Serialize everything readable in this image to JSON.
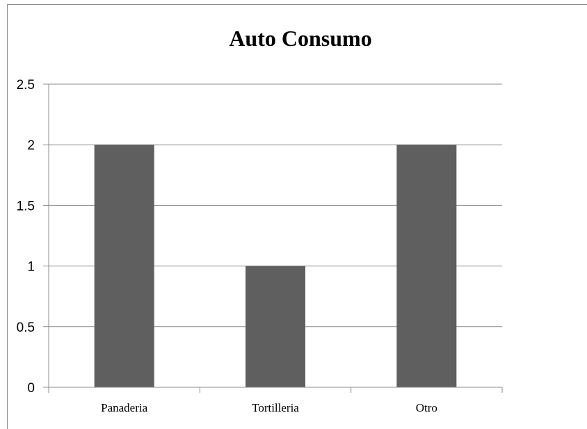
{
  "chart_data": {
    "type": "bar",
    "title": "Auto Consumo",
    "categories": [
      "Panaderia",
      "Tortilleria",
      "Otro"
    ],
    "values": [
      2,
      1,
      2
    ],
    "xlabel": "",
    "ylabel": "",
    "ylim": [
      0,
      2.5
    ],
    "yticks": [
      "0",
      "0.5",
      "1",
      "1.5",
      "2",
      "2.5"
    ],
    "grid": true,
    "legend": "none",
    "bar_color": "#5f5f5f",
    "grid_color": "#8c8c8c"
  }
}
